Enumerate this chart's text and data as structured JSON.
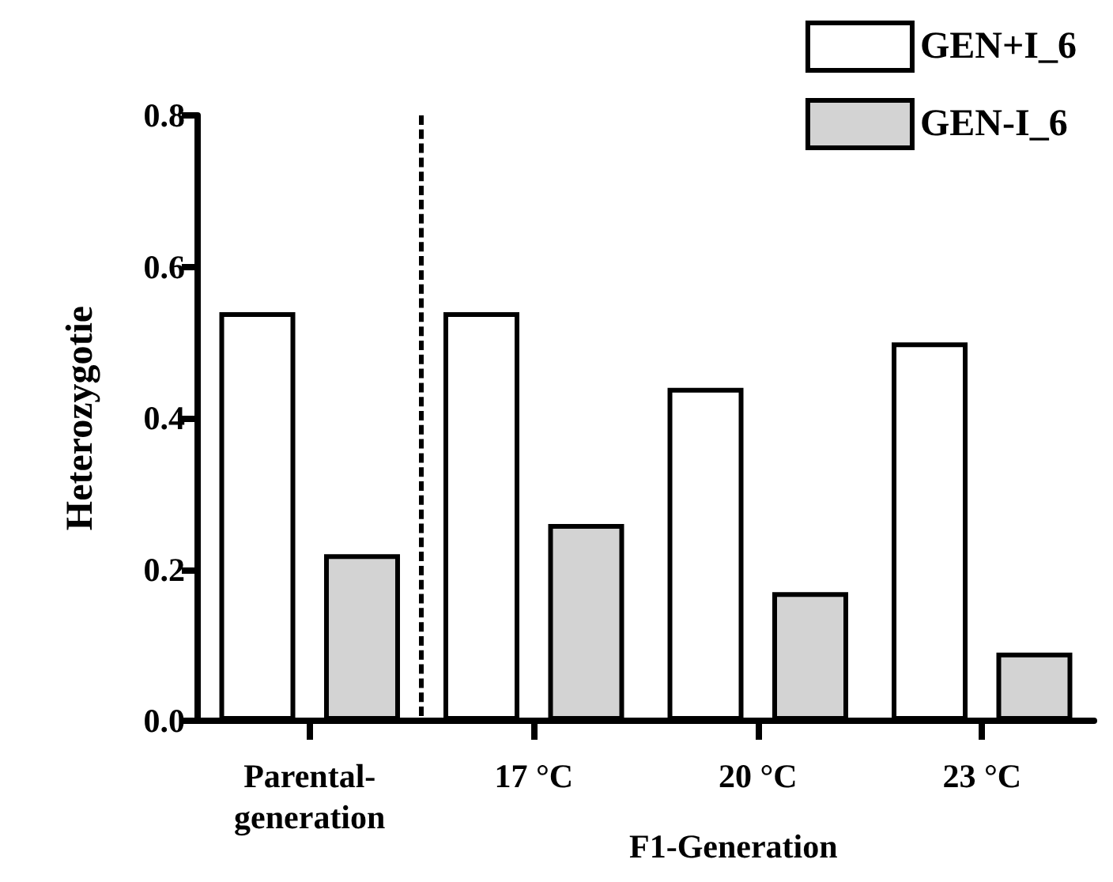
{
  "chart_data": {
    "type": "bar",
    "ylabel": "Heterozygotie",
    "categories": [
      "Parental-\ngeneration",
      "17 °C",
      "20 °C",
      "23 °C"
    ],
    "series": [
      {
        "name": "GEN+I_6",
        "color": "#ffffff",
        "values": [
          0.54,
          0.54,
          0.44,
          0.5
        ]
      },
      {
        "name": "GEN-I_6",
        "color": "#d3d3d3",
        "values": [
          0.22,
          0.26,
          0.17,
          0.09
        ]
      }
    ],
    "ylim": [
      0,
      0.8
    ],
    "yticks": [
      {
        "value": 0,
        "label": "0.0"
      },
      0.2,
      0.4,
      0.6,
      0.8
    ],
    "annotations": [
      "F1-Generation"
    ],
    "legend": "top right",
    "grid": false
  }
}
